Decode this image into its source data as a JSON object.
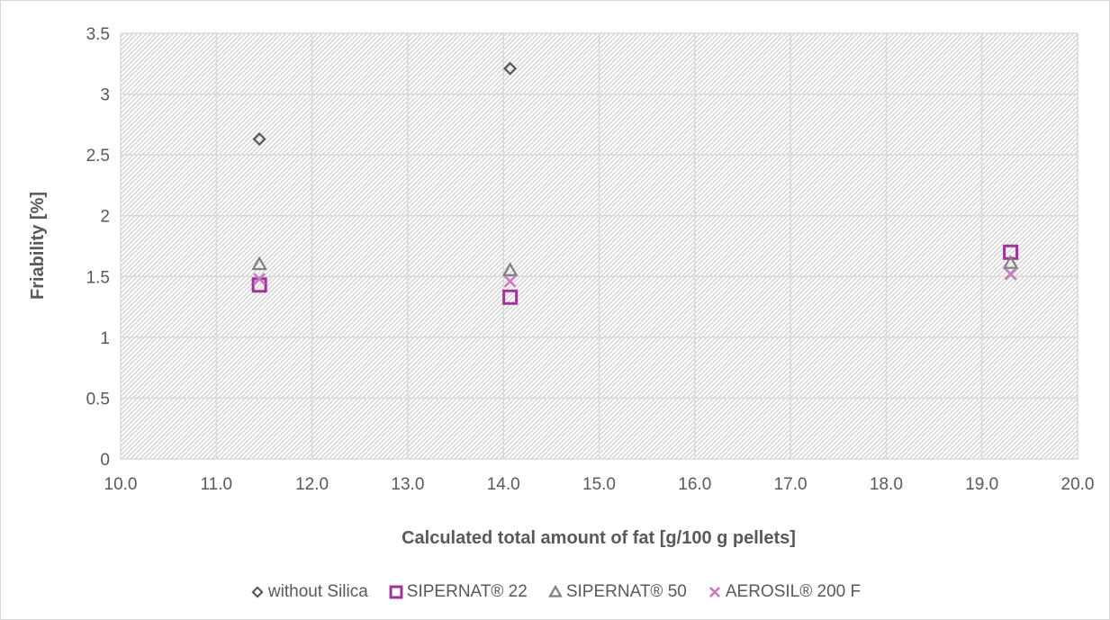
{
  "chart_data": {
    "type": "scatter",
    "title": "",
    "xlabel": "Calculated total amount of fat [g/100 g pellets]",
    "ylabel": "Friability [%]",
    "xlim": [
      10.0,
      20.0
    ],
    "ylim": [
      0,
      3.5
    ],
    "x_ticks": [
      "10.0",
      "11.0",
      "12.0",
      "13.0",
      "14.0",
      "15.0",
      "16.0",
      "17.0",
      "18.0",
      "19.0",
      "20.0"
    ],
    "y_ticks": [
      "0",
      "0.5",
      "1",
      "1.5",
      "2",
      "2.5",
      "3",
      "3.5"
    ],
    "grid": true,
    "legend_position": "bottom",
    "series": [
      {
        "name": "without Silica",
        "marker": "diamond",
        "color": "#595959",
        "points": [
          {
            "x": 11.45,
            "y": 2.63
          },
          {
            "x": 14.07,
            "y": 3.21
          }
        ]
      },
      {
        "name": "SIPERNAT® 22",
        "marker": "square",
        "color": "#a0349b",
        "points": [
          {
            "x": 11.45,
            "y": 1.43
          },
          {
            "x": 14.07,
            "y": 1.33
          },
          {
            "x": 19.3,
            "y": 1.7
          }
        ]
      },
      {
        "name": "SIPERNAT® 50",
        "marker": "triangle",
        "color": "#7f7f7f",
        "points": [
          {
            "x": 11.45,
            "y": 1.6
          },
          {
            "x": 14.07,
            "y": 1.55
          },
          {
            "x": 19.3,
            "y": 1.61
          }
        ]
      },
      {
        "name": "AEROSIL® 200 F",
        "marker": "x",
        "color": "#cc79c3",
        "points": [
          {
            "x": 11.45,
            "y": 1.48
          },
          {
            "x": 14.07,
            "y": 1.46
          },
          {
            "x": 19.3,
            "y": 1.52
          }
        ]
      }
    ]
  }
}
